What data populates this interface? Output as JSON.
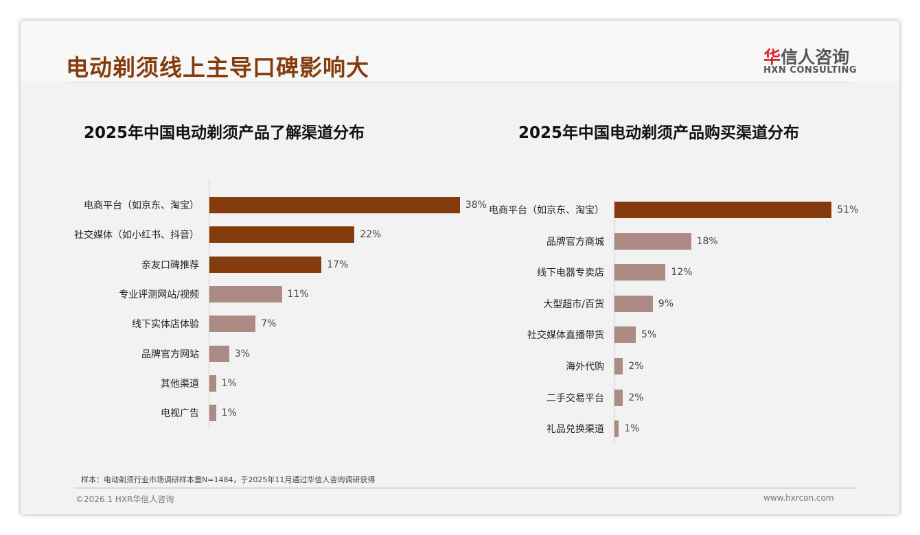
{
  "header": {
    "title": "电动剃须线上主导口碑影响大",
    "logo_cn_red": "华",
    "logo_cn": "信人咨询",
    "logo_en": "HXN CONSULTING"
  },
  "colors": {
    "primary": "#843c0c",
    "secondary": "#ab8b84",
    "arrow": "#ed7d31"
  },
  "chart_data": [
    {
      "type": "bar",
      "orientation": "horizontal",
      "title": "2025年中国电动剃须产品了解渠道分布",
      "categories": [
        "电商平台（如京东、淘宝）",
        "社交媒体（如小红书、抖音）",
        "亲友口碑推荐",
        "专业评测网站/视频",
        "线下实体店体验",
        "品牌官方网站",
        "其他渠道",
        "电视广告"
      ],
      "values": [
        38,
        22,
        17,
        11,
        7,
        3,
        1,
        1
      ],
      "labels": [
        "38%",
        "22%",
        "17%",
        "11%",
        "7%",
        "3%",
        "1%",
        "1%"
      ],
      "highlight_top": 3,
      "xlim": [
        0,
        38
      ]
    },
    {
      "type": "bar",
      "orientation": "horizontal",
      "title": "2025年中国电动剃须产品购买渠道分布",
      "categories": [
        "电商平台（如京东、淘宝）",
        "品牌官方商城",
        "线下电器专卖店",
        "大型超市/百货",
        "社交媒体直播带货",
        "海外代购",
        "二手交易平台",
        "礼品兑换渠道"
      ],
      "values": [
        51,
        18,
        12,
        9,
        5,
        2,
        2,
        1
      ],
      "labels": [
        "51%",
        "18%",
        "12%",
        "9%",
        "5%",
        "2%",
        "2%",
        "1%"
      ],
      "highlight_top": 1,
      "xlim": [
        0,
        51
      ]
    }
  ],
  "footer": {
    "note": "样本：电动剃须行业市场调研样本量N=1484，于2025年11月通过华信人咨询调研获得",
    "copyright": "©2026.1 HXR华信人咨询",
    "website": "www.hxrcon.com"
  }
}
